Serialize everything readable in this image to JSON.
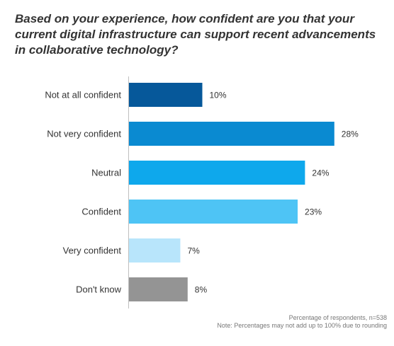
{
  "chart_data": {
    "type": "bar",
    "orientation": "horizontal",
    "title": "Based on your experience, how confident are you that your current digital infrastructure can support recent advancements in collaborative technology?",
    "categories": [
      "Not at all confident",
      "Not very confident",
      "Neutral",
      "Confident",
      "Very confident",
      "Don't know"
    ],
    "values": [
      10,
      28,
      24,
      23,
      7,
      8
    ],
    "value_labels": [
      "10%",
      "28%",
      "24%",
      "23%",
      "7%",
      "8%"
    ],
    "colors": [
      "#06589a",
      "#0a8ad1",
      "#0ea8ec",
      "#4ec4f5",
      "#b8e5fb",
      "#949494"
    ],
    "xlim": [
      0,
      30
    ],
    "unit": "%",
    "grid": false,
    "legend": "none"
  },
  "notes": {
    "respondents": "Percentage of respondents, n=538",
    "rounding": "Note: Percentages may not add up to 100% due to rounding"
  }
}
